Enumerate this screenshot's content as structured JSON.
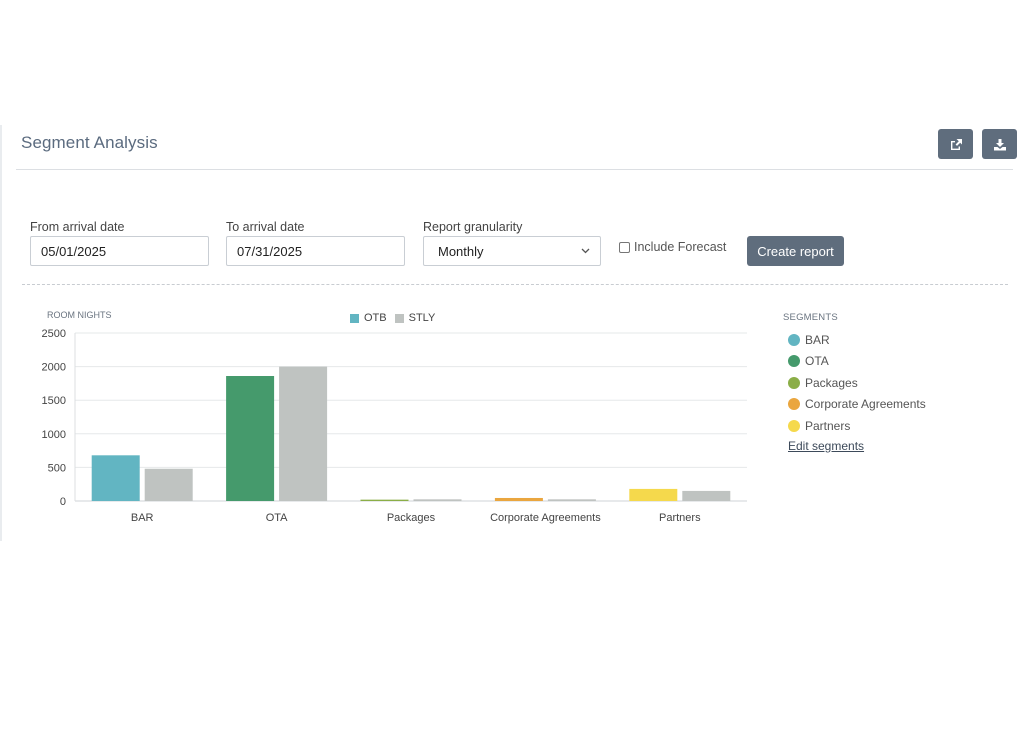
{
  "header": {
    "title": "Segment Analysis",
    "share_icon": "share-icon",
    "download_icon": "download-icon"
  },
  "filters": {
    "from_label": "From arrival date",
    "from_value": "05/01/2025",
    "to_label": "To arrival date",
    "to_value": "07/31/2025",
    "granularity_label": "Report granularity",
    "granularity_value": "Monthly",
    "forecast_label": "Include Forecast",
    "forecast_checked": false,
    "create_label": "Create report"
  },
  "segments_panel": {
    "header": "SEGMENTS",
    "items": [
      {
        "label": "BAR",
        "color": "#62b5c2"
      },
      {
        "label": "OTA",
        "color": "#459a6c"
      },
      {
        "label": "Packages",
        "color": "#8bae47"
      },
      {
        "label": "Corporate Agreements",
        "color": "#eaa63f"
      },
      {
        "label": "Partners",
        "color": "#f5d94c"
      }
    ],
    "edit_label": "Edit segments"
  },
  "chart_data": {
    "type": "bar",
    "ylabel": "ROOM NIGHTS",
    "ylim": [
      0,
      2500
    ],
    "yticks": [
      0,
      500,
      1000,
      1500,
      2000,
      2500
    ],
    "grid": true,
    "legend_position": "top-center",
    "categories": [
      "BAR",
      "OTA",
      "Packages",
      "Corporate Agreements",
      "Partners"
    ],
    "series": [
      {
        "name": "OTB",
        "values": [
          680,
          1860,
          20,
          45,
          180
        ],
        "colors": [
          "#62b5c2",
          "#459a6c",
          "#8bae47",
          "#eaa63f",
          "#f5d94c"
        ],
        "legend_color": "#62b5c2"
      },
      {
        "name": "STLY",
        "values": [
          480,
          2000,
          25,
          25,
          150
        ],
        "color": "#bfc3c1"
      }
    ]
  }
}
